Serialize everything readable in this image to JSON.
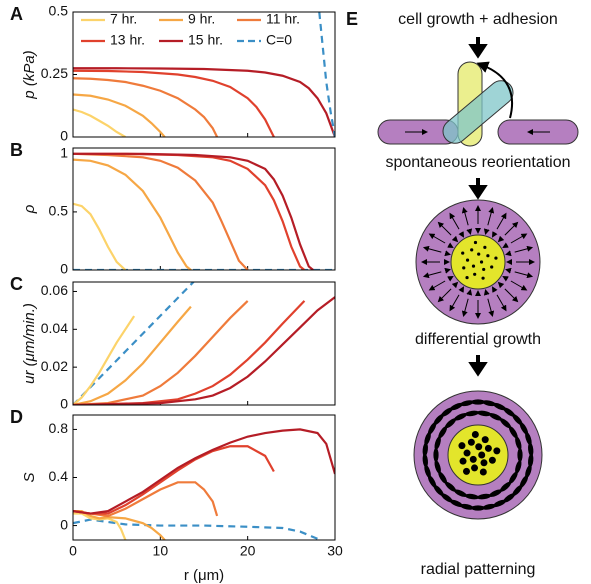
{
  "chart_data": [
    {
      "type": "line",
      "panel": "A",
      "ylabel": "p (kPa)",
      "xlim": [
        0,
        30
      ],
      "xticks": [
        0,
        10,
        20,
        30
      ],
      "ylim": [
        0,
        0.5
      ],
      "yticks": [
        0,
        0.25,
        0.5
      ],
      "legend": "upper left",
      "series": [
        {
          "name": "7 hr.",
          "color": "#fcd36a",
          "x": [
            0,
            1,
            2,
            3,
            4,
            5,
            6
          ],
          "values": [
            0.11,
            0.1,
            0.085,
            0.065,
            0.045,
            0.02,
            0
          ]
        },
        {
          "name": "9 hr.",
          "color": "#f6a745",
          "x": [
            0,
            2,
            4,
            6,
            8,
            9,
            10,
            10.5
          ],
          "values": [
            0.17,
            0.165,
            0.15,
            0.125,
            0.085,
            0.055,
            0.02,
            0
          ]
        },
        {
          "name": "11 hr.",
          "color": "#ef7b3b",
          "x": [
            0,
            2,
            4,
            6,
            8,
            10,
            12,
            14,
            15,
            16,
            16.5
          ],
          "values": [
            0.235,
            0.233,
            0.228,
            0.22,
            0.205,
            0.185,
            0.155,
            0.11,
            0.08,
            0.035,
            0
          ]
        },
        {
          "name": "13 hr.",
          "color": "#e0412d",
          "x": [
            0,
            4,
            8,
            12,
            14,
            16,
            18,
            20,
            21,
            22,
            23
          ],
          "values": [
            0.265,
            0.264,
            0.26,
            0.25,
            0.24,
            0.225,
            0.2,
            0.155,
            0.12,
            0.07,
            0
          ]
        },
        {
          "name": "15 hr.",
          "color": "#b51d26",
          "x": [
            0,
            5,
            10,
            15,
            20,
            22,
            24,
            26,
            27,
            28,
            29,
            30
          ],
          "values": [
            0.275,
            0.275,
            0.274,
            0.272,
            0.265,
            0.258,
            0.245,
            0.22,
            0.195,
            0.155,
            0.095,
            0
          ]
        },
        {
          "name": "C=0",
          "color": "#3b8fc6",
          "dashed": true,
          "x": [
            28.2,
            28.6,
            29,
            29.5,
            30
          ],
          "values": [
            0.5,
            0.36,
            0.22,
            0.1,
            0
          ]
        }
      ]
    },
    {
      "type": "line",
      "panel": "B",
      "ylabel": "ρ",
      "xlim": [
        0,
        30
      ],
      "xticks": [
        0,
        10,
        20,
        30
      ],
      "ylim": [
        0,
        1.05
      ],
      "yticks": [
        0,
        0.5,
        1
      ],
      "series": [
        {
          "color": "#3b8fc6",
          "dashed": true,
          "x": [
            0,
            30
          ],
          "values": [
            0,
            0
          ]
        },
        {
          "color": "#fcd36a",
          "x": [
            0,
            1,
            2,
            3,
            4,
            5,
            6
          ],
          "values": [
            0.57,
            0.55,
            0.48,
            0.35,
            0.2,
            0.07,
            0
          ]
        },
        {
          "color": "#f6a745",
          "x": [
            0,
            2,
            4,
            6,
            8,
            10,
            11,
            12,
            13,
            13.5
          ],
          "values": [
            0.95,
            0.94,
            0.9,
            0.82,
            0.68,
            0.45,
            0.3,
            0.15,
            0.03,
            0
          ]
        },
        {
          "color": "#ef7b3b",
          "x": [
            0,
            4,
            8,
            10,
            12,
            14,
            16,
            17,
            18,
            19,
            20
          ],
          "values": [
            1,
            0.99,
            0.97,
            0.94,
            0.88,
            0.77,
            0.58,
            0.42,
            0.25,
            0.08,
            0
          ]
        },
        {
          "color": "#e0412d",
          "x": [
            0,
            6,
            12,
            16,
            18,
            20,
            22,
            23,
            24,
            25,
            26,
            26.5
          ],
          "values": [
            1,
            1,
            0.99,
            0.97,
            0.94,
            0.87,
            0.73,
            0.6,
            0.42,
            0.2,
            0.03,
            0
          ]
        },
        {
          "color": "#b51d26",
          "x": [
            0,
            8,
            14,
            18,
            20,
            22,
            23,
            24,
            25,
            26,
            27,
            27.5
          ],
          "values": [
            1,
            1,
            0.99,
            0.97,
            0.94,
            0.87,
            0.78,
            0.64,
            0.45,
            0.22,
            0.03,
            0
          ]
        }
      ]
    },
    {
      "type": "line",
      "panel": "C",
      "ylabel": "ur (μm/min.)",
      "xlim": [
        0,
        30
      ],
      "xticks": [
        0,
        10,
        20,
        30
      ],
      "ylim": [
        0,
        0.065
      ],
      "yticks": [
        0,
        0.02,
        0.04,
        0.06
      ],
      "series": [
        {
          "color": "#3b8fc6",
          "dashed": true,
          "x": [
            0,
            14
          ],
          "values": [
            0,
            0.066
          ]
        },
        {
          "color": "#fcd36a",
          "x": [
            0,
            1,
            2,
            3,
            4,
            5,
            6,
            7
          ],
          "values": [
            0,
            0.004,
            0.01,
            0.017,
            0.025,
            0.033,
            0.04,
            0.047
          ]
        },
        {
          "color": "#f6a745",
          "x": [
            0,
            2,
            4,
            6,
            8,
            10,
            12,
            13.5
          ],
          "values": [
            0,
            0.002,
            0.006,
            0.013,
            0.022,
            0.033,
            0.044,
            0.052
          ]
        },
        {
          "color": "#ef7b3b",
          "x": [
            0,
            4,
            8,
            10,
            12,
            14,
            16,
            18,
            20
          ],
          "values": [
            0,
            0.001,
            0.005,
            0.01,
            0.017,
            0.026,
            0.036,
            0.046,
            0.055
          ]
        },
        {
          "color": "#e0412d",
          "x": [
            0,
            8,
            12,
            14,
            16,
            18,
            20,
            22,
            24,
            26.5
          ],
          "values": [
            0,
            0.001,
            0.003,
            0.006,
            0.01,
            0.016,
            0.024,
            0.033,
            0.043,
            0.055
          ]
        },
        {
          "color": "#b51d26",
          "x": [
            0,
            10,
            14,
            16,
            18,
            20,
            22,
            24,
            26,
            28,
            30
          ],
          "values": [
            0,
            0.001,
            0.003,
            0.005,
            0.009,
            0.015,
            0.023,
            0.032,
            0.041,
            0.05,
            0.057
          ]
        }
      ]
    },
    {
      "type": "line",
      "panel": "D",
      "ylabel": "S",
      "xlabel": "r (μm)",
      "xlim": [
        0,
        30
      ],
      "xticks": [
        0,
        10,
        20,
        30
      ],
      "ylim": [
        -0.12,
        0.92
      ],
      "yticks": [
        0,
        0.4,
        0.8
      ],
      "series": [
        {
          "color": "#3b8fc6",
          "dashed": true,
          "x": [
            0,
            2,
            4,
            6,
            10,
            15,
            20,
            24,
            26,
            27,
            28,
            28.5
          ],
          "values": [
            0.02,
            0.05,
            0.03,
            0.01,
            0,
            0,
            -0.01,
            -0.02,
            -0.05,
            -0.08,
            -0.11,
            -0.12
          ]
        },
        {
          "color": "#fcd36a",
          "x": [
            0,
            1,
            2,
            3,
            4,
            5,
            5.5,
            6
          ],
          "values": [
            0.1,
            0.1,
            0.06,
            0.05,
            0.06,
            0.03,
            -0.03,
            -0.12
          ]
        },
        {
          "color": "#f6a745",
          "x": [
            0,
            1,
            2,
            3,
            4,
            6,
            8,
            9,
            10,
            10.5
          ],
          "values": [
            0.12,
            0.12,
            0.08,
            0.06,
            0.07,
            0.06,
            0.02,
            -0.02,
            -0.08,
            -0.12
          ]
        },
        {
          "color": "#ef7b3b",
          "x": [
            0,
            2,
            4,
            6,
            8,
            10,
            12,
            14,
            15,
            16,
            16.5
          ],
          "values": [
            0.12,
            0.1,
            0.08,
            0.14,
            0.22,
            0.3,
            0.36,
            0.36,
            0.3,
            0.2,
            0.08
          ]
        },
        {
          "color": "#e0412d",
          "x": [
            0,
            2,
            4,
            6,
            8,
            10,
            12,
            14,
            16,
            18,
            20,
            22,
            23
          ],
          "values": [
            0.12,
            0.1,
            0.1,
            0.17,
            0.26,
            0.36,
            0.46,
            0.55,
            0.62,
            0.66,
            0.66,
            0.58,
            0.45
          ]
        },
        {
          "color": "#b51d26",
          "x": [
            0,
            2,
            4,
            6,
            8,
            10,
            12,
            14,
            16,
            18,
            20,
            22,
            24,
            26,
            28,
            29,
            30
          ],
          "values": [
            0.12,
            0.1,
            0.12,
            0.2,
            0.28,
            0.38,
            0.48,
            0.56,
            0.63,
            0.69,
            0.74,
            0.77,
            0.79,
            0.8,
            0.77,
            0.68,
            0.43
          ]
        }
      ]
    }
  ],
  "diagram": {
    "label": "E",
    "steps": [
      "cell growth + adhesion",
      "spontaneous reorientation",
      "differential growth",
      "radial patterning"
    ]
  }
}
